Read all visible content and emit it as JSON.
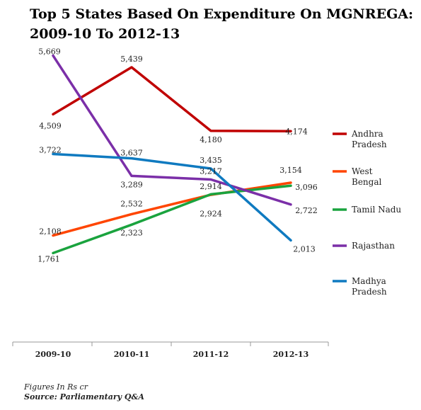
{
  "header": {
    "title_line1": "Top 5 States Based On Expenditure On MGNREGA:",
    "title_line2": "2009-10 To 2012-13"
  },
  "footer": {
    "units": "Figures In Rs cr",
    "source": "Source: Parliamentary Q&A"
  },
  "chart_data": {
    "type": "line",
    "title": "Top 5 States Based On Expenditure On MGNREGA: 2009-10 To 2012-13",
    "categories": [
      "2009-10",
      "2010-11",
      "2011-12",
      "2012-13"
    ],
    "ylim": [
      0,
      6000
    ],
    "grid": false,
    "legend": "right",
    "units": "Figures In Rs cr",
    "series": [
      {
        "name": "Andhra Pradesh",
        "color": "#c00000",
        "values": [
          4509,
          5439,
          4180,
          4174
        ],
        "labels": [
          "4,509",
          "5,439",
          "4,180",
          "4,174"
        ]
      },
      {
        "name": "West Bengal",
        "color": "#ff4500",
        "values": [
          2108,
          2532,
          2914,
          3154
        ],
        "labels": [
          "2,108",
          "2,532",
          "2,914",
          "3,154"
        ]
      },
      {
        "name": "Tamil Nadu",
        "color": "#1aa33e",
        "values": [
          1761,
          2323,
          2924,
          3096
        ],
        "labels": [
          "1,761",
          "2,323",
          "2,924",
          "3,096"
        ]
      },
      {
        "name": "Rajasthan",
        "color": "#7b2fa8",
        "values": [
          5669,
          3289,
          3217,
          2722
        ],
        "labels": [
          "5,669",
          "3,289",
          "3,217",
          "2,722"
        ]
      },
      {
        "name": "Madhya Pradesh",
        "color": "#0f7ac0",
        "values": [
          3722,
          3637,
          3435,
          2013
        ],
        "labels": [
          "3,722",
          "3,637",
          "3,435",
          "2,013"
        ]
      }
    ]
  }
}
